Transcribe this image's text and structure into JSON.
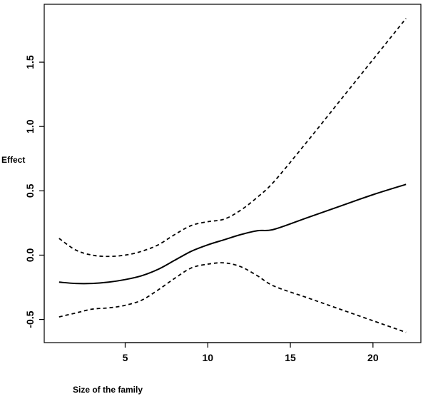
{
  "chart_data": {
    "type": "line",
    "title": "",
    "xlabel": "Size of the family",
    "ylabel": "Effect",
    "xlim": [
      0.1,
      22.9
    ],
    "ylim": [
      -0.68,
      1.95
    ],
    "x_ticks": [
      5,
      10,
      15,
      20
    ],
    "y_ticks": [
      -0.5,
      0.0,
      0.5,
      1.0,
      1.5
    ],
    "y_tick_labels": [
      "-0.5",
      "0.0",
      "0.5",
      "1.0",
      "1.5"
    ],
    "grid": false,
    "legend": "none",
    "colors": {
      "line": "#000000",
      "axis": "#000000",
      "background": "#ffffff"
    },
    "series": [
      {
        "style": "solid",
        "x": [
          1,
          2,
          3,
          4,
          5,
          6,
          7,
          8,
          9,
          10,
          11,
          12,
          13,
          14,
          16,
          18,
          20,
          22
        ],
        "y": [
          -0.21,
          -0.22,
          -0.22,
          -0.21,
          -0.19,
          -0.16,
          -0.11,
          -0.04,
          0.03,
          0.08,
          0.12,
          0.16,
          0.19,
          0.2,
          0.29,
          0.38,
          0.47,
          0.55
        ]
      },
      {
        "style": "dashed",
        "x": [
          1,
          2,
          3,
          4,
          5,
          6,
          7,
          8,
          9,
          10,
          11,
          12,
          13,
          14,
          16,
          18,
          20,
          22
        ],
        "y": [
          0.13,
          0.04,
          0.0,
          -0.01,
          0.0,
          0.03,
          0.08,
          0.16,
          0.23,
          0.26,
          0.28,
          0.35,
          0.45,
          0.57,
          0.88,
          1.2,
          1.52,
          1.84
        ]
      },
      {
        "style": "dashed",
        "x": [
          1,
          2,
          3,
          4,
          5,
          6,
          7,
          8,
          9,
          10,
          11,
          12,
          13,
          14,
          16,
          18,
          20,
          22
        ],
        "y": [
          -0.48,
          -0.45,
          -0.42,
          -0.41,
          -0.39,
          -0.35,
          -0.27,
          -0.18,
          -0.1,
          -0.07,
          -0.06,
          -0.09,
          -0.16,
          -0.24,
          -0.33,
          -0.42,
          -0.51,
          -0.6
        ]
      }
    ]
  }
}
